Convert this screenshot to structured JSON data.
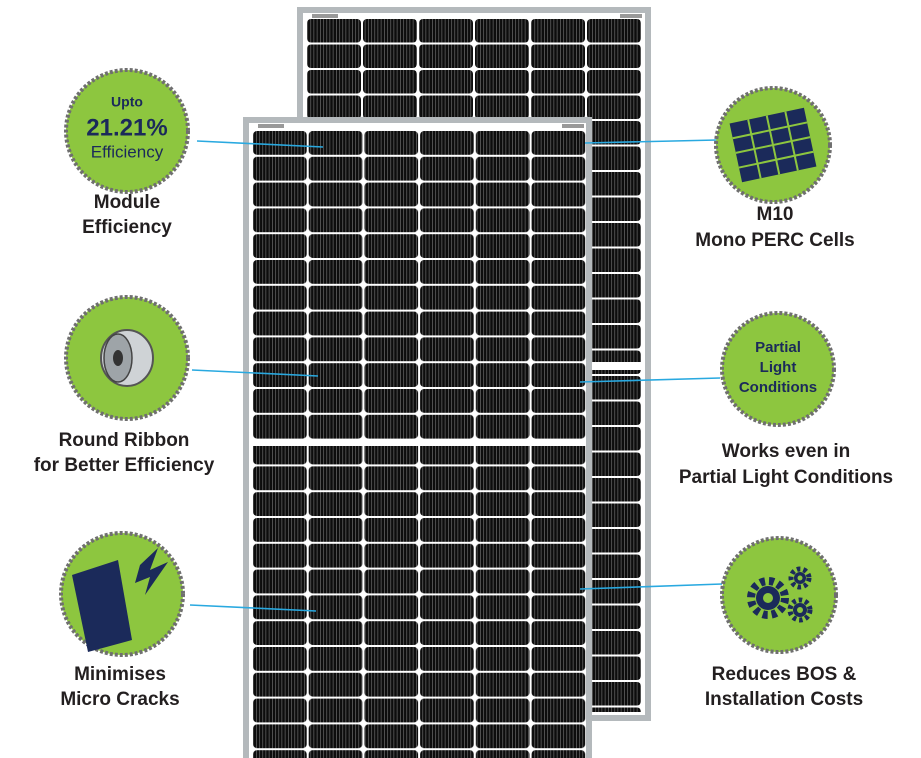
{
  "features": [
    {
      "title": [
        "Module",
        "Efficiency"
      ],
      "badge": [
        "Upto",
        "21.21%",
        "Efficiency"
      ]
    },
    {
      "title": [
        "Round Ribbon",
        "for Better Efficiency"
      ]
    },
    {
      "title": [
        "Minimises",
        "Micro Cracks"
      ]
    },
    {
      "title": [
        "M10",
        "Mono PERC Cells"
      ]
    },
    {
      "title": [
        "Works even in",
        "Partial Light Conditions"
      ],
      "badge": [
        "Partial",
        "Light",
        "Conditions"
      ]
    },
    {
      "title": [
        "Reduces BOS &",
        "Installation Costs"
      ]
    }
  ]
}
